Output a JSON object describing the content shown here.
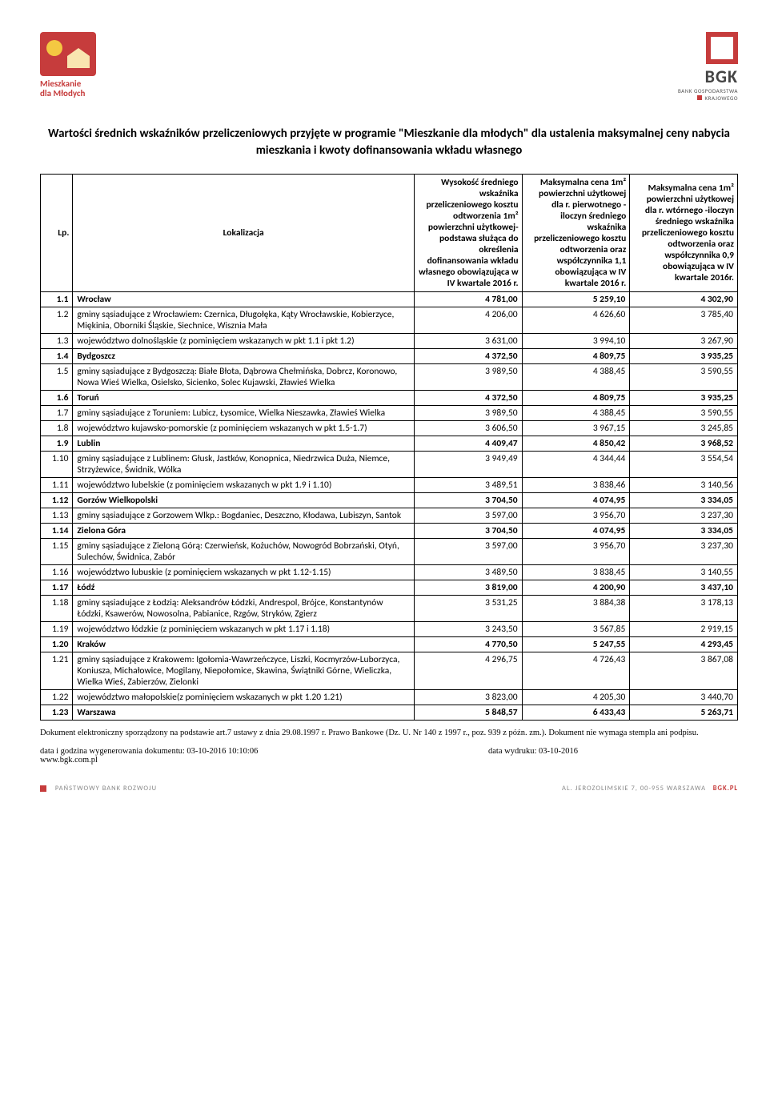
{
  "logoLeft": {
    "line1": "Mieszkanie",
    "line2": "dla Młodych"
  },
  "logoRight": {
    "brand": "BGK",
    "sub1": "BANK GOSPODARSTWA",
    "sub2": "KRAJOWEGO"
  },
  "title": "Wartości średnich wskaźników przeliczeniowych przyjęte w programie \"Mieszkanie dla młodych\" dla ustalenia maksymalnej ceny nabycia mieszkania i kwoty dofinansowania wkładu własnego",
  "headers": {
    "lp": "Lp.",
    "loc": "Lokalizacja",
    "c1": "Wysokość średniego wskaźnika przeliczeniowego kosztu odtworzenia 1m² powierzchni użytkowej- podstawa służąca do określenia dofinansowania wkładu własnego obowiązująca w IV kwartale 2016 r.",
    "c2": "Maksymalna cena 1m² powierzchni użytkowej dla r. pierwotnego - iloczyn średniego wskaźnika przeliczeniowego kosztu odtworzenia oraz współczynnika 1,1 obowiązująca w IV kwartale 2016 r.",
    "c3": "Maksymalna cena 1m² powierzchni użytkowej dla r. wtórnego -iloczyn średniego wskaźnika przeliczeniowego kosztu odtworzenia oraz współczynnika 0,9 obowiązująca w IV kwartale 2016r."
  },
  "rows": [
    {
      "lp": "1.1",
      "loc": "Wrocław",
      "v1": "4 781,00",
      "v2": "5 259,10",
      "v3": "4 302,90",
      "bold": true
    },
    {
      "lp": "1.2",
      "loc": "gminy sąsiadujące z Wrocławiem: Czernica, Długołęka, Kąty Wrocławskie, Kobierzyce, Miękinia, Oborniki Śląskie, Siechnice, Wisznia Mała",
      "v1": "4 206,00",
      "v2": "4 626,60",
      "v3": "3 785,40",
      "bold": false
    },
    {
      "lp": "1.3",
      "loc": "województwo dolnośląskie (z pominięciem wskazanych w pkt 1.1 i pkt 1.2)",
      "v1": "3 631,00",
      "v2": "3 994,10",
      "v3": "3 267,90",
      "bold": false
    },
    {
      "lp": "1.4",
      "loc": "Bydgoszcz",
      "v1": "4 372,50",
      "v2": "4 809,75",
      "v3": "3 935,25",
      "bold": true
    },
    {
      "lp": "1.5",
      "loc": "gminy sąsiadujące z Bydgoszczą: Białe Błota, Dąbrowa Chełmińska, Dobrcz, Koronowo, Nowa Wieś Wielka, Osielsko, Sicienko, Solec Kujawski, Zławieś Wielka",
      "v1": "3 989,50",
      "v2": "4 388,45",
      "v3": "3 590,55",
      "bold": false
    },
    {
      "lp": "1.6",
      "loc": "Toruń",
      "v1": "4 372,50",
      "v2": "4 809,75",
      "v3": "3 935,25",
      "bold": true
    },
    {
      "lp": "1.7",
      "loc": "gminy sąsiadujące z Toruniem: Lubicz, Łysomice, Wielka Nieszawka, Zławieś Wielka",
      "v1": "3 989,50",
      "v2": "4 388,45",
      "v3": "3 590,55",
      "bold": false
    },
    {
      "lp": "1.8",
      "loc": "województwo kujawsko-pomorskie (z pominięciem wskazanych w pkt 1.5-1.7)",
      "v1": "3 606,50",
      "v2": "3 967,15",
      "v3": "3 245,85",
      "bold": false
    },
    {
      "lp": "1.9",
      "loc": "Lublin",
      "v1": "4 409,47",
      "v2": "4 850,42",
      "v3": "3 968,52",
      "bold": true
    },
    {
      "lp": "1.10",
      "loc": "gminy sąsiadujące z Lublinem: Głusk, Jastków, Konopnica, Niedrzwica Duża, Niemce, Strzyżewice, Świdnik, Wólka",
      "v1": "3 949,49",
      "v2": "4 344,44",
      "v3": "3 554,54",
      "bold": false
    },
    {
      "lp": "1.11",
      "loc": "województwo lubelskie (z pominięciem wskazanych w pkt 1.9 i 1.10)",
      "v1": "3 489,51",
      "v2": "3 838,46",
      "v3": "3 140,56",
      "bold": false
    },
    {
      "lp": "1.12",
      "loc": "Gorzów Wielkopolski",
      "v1": "3 704,50",
      "v2": "4 074,95",
      "v3": "3 334,05",
      "bold": true
    },
    {
      "lp": "1.13",
      "loc": "gminy sąsiadujące z Gorzowem Wlkp.: Bogdaniec, Deszczno, Kłodawa, Lubiszyn, Santok",
      "v1": "3 597,00",
      "v2": "3 956,70",
      "v3": "3 237,30",
      "bold": false
    },
    {
      "lp": "1.14",
      "loc": "Zielona Góra",
      "v1": "3 704,50",
      "v2": "4 074,95",
      "v3": "3 334,05",
      "bold": true
    },
    {
      "lp": "1.15",
      "loc": "gminy sąsiadujące z Zieloną Górą: Czerwieńsk, Kożuchów, Nowogród Bobrzański, Otyń, Sulechów, Świdnica, Zabór",
      "v1": "3 597,00",
      "v2": "3 956,70",
      "v3": "3 237,30",
      "bold": false
    },
    {
      "lp": "1.16",
      "loc": "województwo lubuskie (z pominięciem wskazanych w pkt 1.12-1.15)",
      "v1": "3 489,50",
      "v2": "3 838,45",
      "v3": "3 140,55",
      "bold": false
    },
    {
      "lp": "1.17",
      "loc": "Łódź",
      "v1": "3 819,00",
      "v2": "4 200,90",
      "v3": "3 437,10",
      "bold": true
    },
    {
      "lp": "1.18",
      "loc": "gminy sąsiadujące z Łodzią: Aleksandrów Łódzki, Andrespol, Brójce, Konstantynów Łódzki, Ksawerów, Nowosolna, Pabianice, Rzgów, Stryków, Zgierz",
      "v1": "3 531,25",
      "v2": "3 884,38",
      "v3": "3 178,13",
      "bold": false
    },
    {
      "lp": "1.19",
      "loc": "województwo łódzkie (z pominięciem wskazanych w pkt 1.17 i 1.18)",
      "v1": "3 243,50",
      "v2": "3 567,85",
      "v3": "2 919,15",
      "bold": false
    },
    {
      "lp": "1.20",
      "loc": "Kraków",
      "v1": "4 770,50",
      "v2": "5 247,55",
      "v3": "4 293,45",
      "bold": true
    },
    {
      "lp": "1.21",
      "loc": "gminy sąsiadujące z Krakowem: Igołomia-Wawrzeńczyce, Liszki, Kocmyrzów-Luborzyca, Koniusza, Michałowice, Mogilany, Niepołomice, Skawina, Świątniki Górne, Wieliczka, Wielka Wieś, Zabierzów, Zielonki",
      "v1": "4 296,75",
      "v2": "4 726,43",
      "v3": "3 867,08",
      "bold": false
    },
    {
      "lp": "1.22",
      "loc": "województwo małopolskie(z pominięciem wskazanych w pkt 1.20 1.21)",
      "v1": "3 823,00",
      "v2": "4 205,30",
      "v3": "3 440,70",
      "bold": false
    },
    {
      "lp": "1.23",
      "loc": "Warszawa",
      "v1": "5 848,57",
      "v2": "6 433,43",
      "v3": "5 263,71",
      "bold": true
    }
  ],
  "footer": {
    "legal": "Dokument elektroniczny sporządzony na podstawie art.7 ustawy z dnia 29.08.1997 r. Prawo Bankowe (Dz. U. Nr 140 z 1997 r., poz. 939 z późn. zm.). Dokument nie wymaga stempla ani podpisu.",
    "genLabel": "data i godzina wygenerowania dokumentu: 03-10-2016 10:10:06",
    "printLabel": "data wydruku: 03-10-2016",
    "url": "www.bgk.com.pl",
    "bottomLeft": "PAŃSTWOWY BANK ROZWOJU",
    "bottomRight": "AL. JEROZOLIMSKIE 7, 00-955 WARSZAWA",
    "bottomBrand": "BGK.PL"
  }
}
